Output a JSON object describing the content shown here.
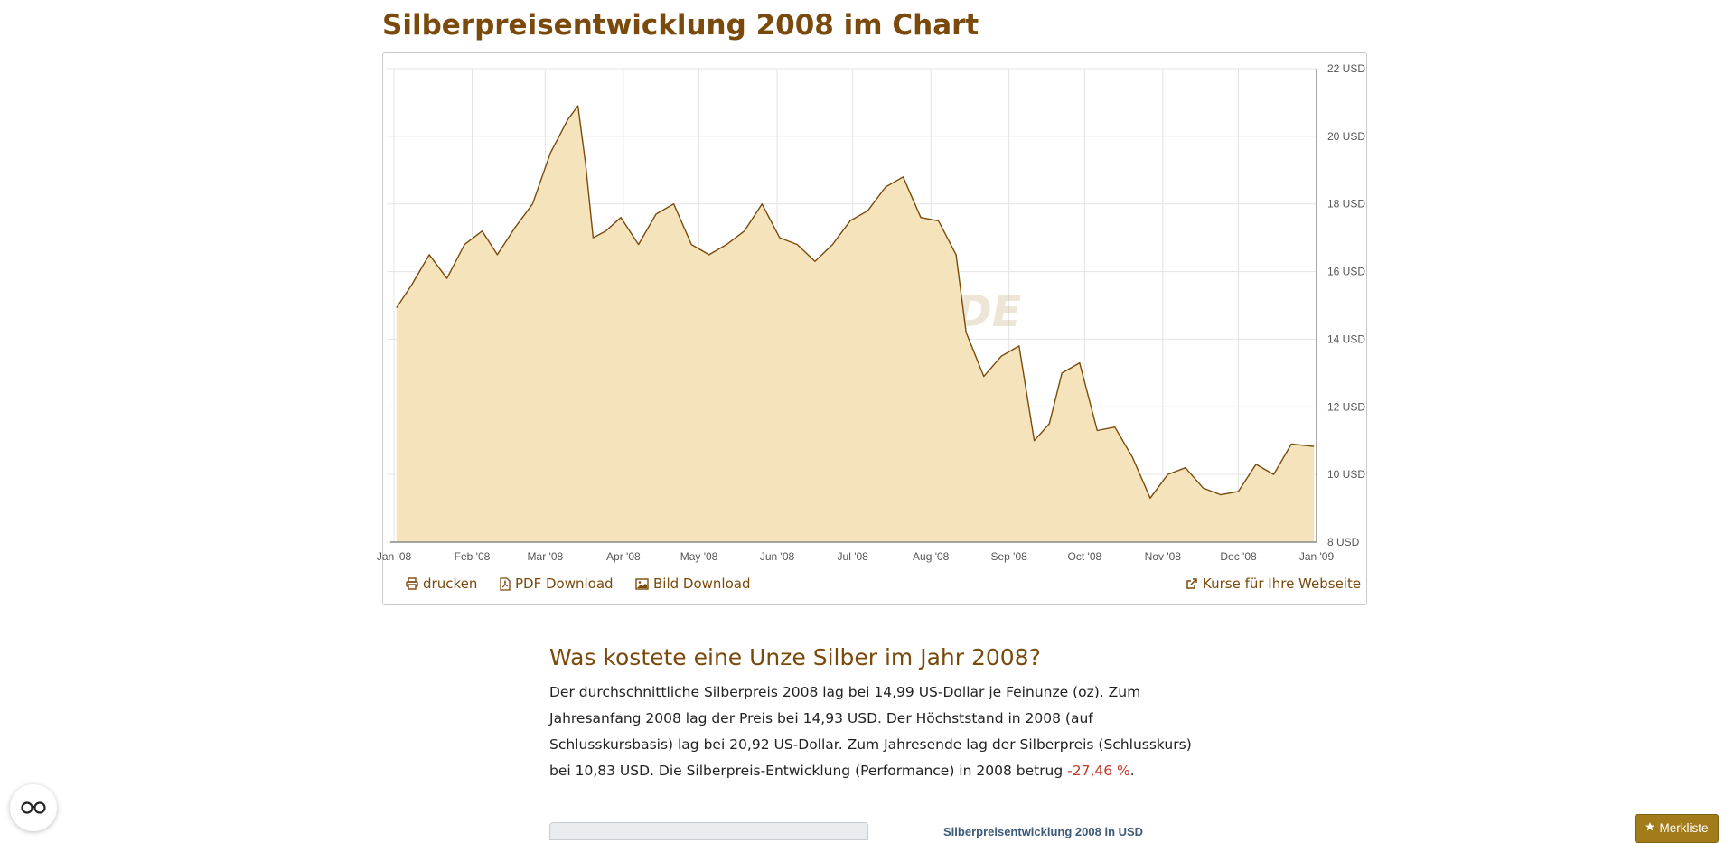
{
  "page": {
    "title": "Silberpreisentwicklung 2008 im Chart"
  },
  "chart_data": {
    "type": "area",
    "title": "",
    "xlabel": "",
    "ylabel": "",
    "ylim": [
      8,
      22
    ],
    "y_ticks": [
      "22 USD",
      "20 USD",
      "18 USD",
      "16 USD",
      "14 USD",
      "12 USD",
      "10 USD",
      "8 USD"
    ],
    "x_ticks": [
      "Jan '08",
      "Feb '08",
      "Mar '08",
      "Apr '08",
      "May '08",
      "Jun '08",
      "Jul '08",
      "Aug '08",
      "Sep '08",
      "Oct '08",
      "Nov '08",
      "Dec '08",
      "Jan '09"
    ],
    "grid": true,
    "watermark": "GOLD.DE",
    "series": [
      {
        "x": [
          "2008-01-02",
          "2008-01-08",
          "2008-01-15",
          "2008-01-22",
          "2008-01-29",
          "2008-02-05",
          "2008-02-11",
          "2008-02-18",
          "2008-02-25",
          "2008-03-03",
          "2008-03-10",
          "2008-03-14",
          "2008-03-17",
          "2008-03-20",
          "2008-03-25",
          "2008-03-31",
          "2008-04-07",
          "2008-04-14",
          "2008-04-21",
          "2008-04-28",
          "2008-05-05",
          "2008-05-12",
          "2008-05-19",
          "2008-05-26",
          "2008-06-02",
          "2008-06-09",
          "2008-06-16",
          "2008-06-23",
          "2008-06-30",
          "2008-07-07",
          "2008-07-14",
          "2008-07-21",
          "2008-07-28",
          "2008-08-04",
          "2008-08-11",
          "2008-08-15",
          "2008-08-22",
          "2008-08-29",
          "2008-09-05",
          "2008-09-11",
          "2008-09-17",
          "2008-09-22",
          "2008-09-29",
          "2008-10-06",
          "2008-10-13",
          "2008-10-20",
          "2008-10-27",
          "2008-11-03",
          "2008-11-10",
          "2008-11-17",
          "2008-11-24",
          "2008-12-01",
          "2008-12-08",
          "2008-12-15",
          "2008-12-22",
          "2008-12-31"
        ],
        "values": [
          14.93,
          15.6,
          16.5,
          15.8,
          16.8,
          17.2,
          16.5,
          17.3,
          18.0,
          19.5,
          20.5,
          20.9,
          19.2,
          17.0,
          17.2,
          17.6,
          16.8,
          17.7,
          18.0,
          16.8,
          16.5,
          16.8,
          17.2,
          18.0,
          17.0,
          16.8,
          16.3,
          16.8,
          17.5,
          17.8,
          18.5,
          18.8,
          17.6,
          17.5,
          16.5,
          14.2,
          12.9,
          13.5,
          13.8,
          11.0,
          11.5,
          13.0,
          13.3,
          11.3,
          11.4,
          10.5,
          9.3,
          10.0,
          10.2,
          9.6,
          9.4,
          9.5,
          10.3,
          10.0,
          10.9,
          10.83
        ]
      }
    ],
    "stats": {
      "average": "14,99",
      "start": "14,93",
      "high": "20,92",
      "end": "10,83",
      "performance": "-27,46 %"
    }
  },
  "actions": {
    "print": "drucken",
    "pdf": "PDF Download",
    "image": "Bild Download",
    "widget": "Kurse für Ihre Webseite"
  },
  "section": {
    "title": "Was kostete eine Unze Silber im Jahr 2008?",
    "text_before": "Der durchschnittliche Silberpreis 2008 lag bei 14,99 US-Dollar je Feinunze (oz). Zum Jahresanfang 2008 lag der Preis bei 14,93 USD. Der Höchststand in 2008 (auf Schlusskursbasis) lag bei 20,92 US-Dollar. Zum Jahresende lag der Silberpreis (Schlusskurs) bei 10,83 USD. Die Silberpreis-Entwicklung (Performance) in 2008 betrug ",
    "performance": "-27,46 %",
    "text_after": "."
  },
  "small_chart": {
    "title": "Silberpreisentwicklung 2008 in USD"
  },
  "merkliste": {
    "label": "Merkliste"
  },
  "colors": {
    "brand": "#7a4a0c",
    "area_fill": "#f5e4bb",
    "line": "#7a4a0c",
    "negative": "#c0392b",
    "button": "#a27c1a"
  },
  "icons": {
    "print": "print-icon",
    "pdf": "file-pdf-icon",
    "image": "image-icon",
    "widget": "share-icon",
    "reader": "glasses-icon",
    "star": "star-icon"
  }
}
